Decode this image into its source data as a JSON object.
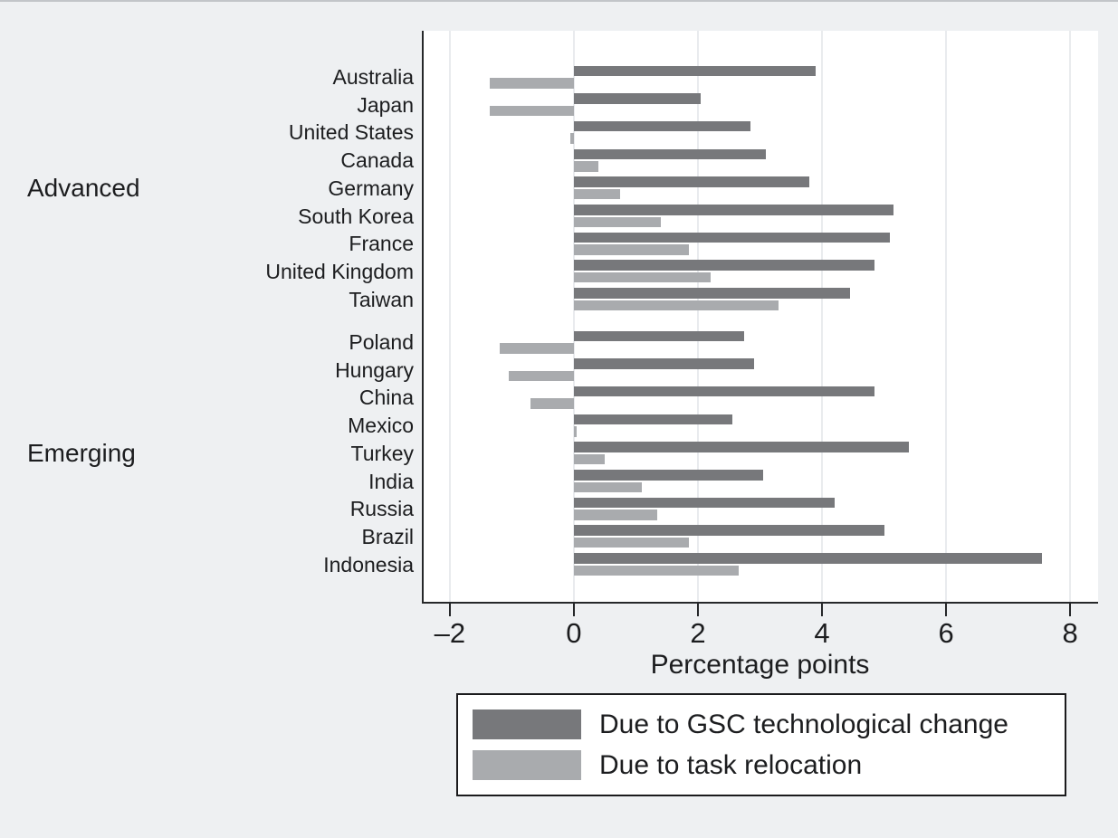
{
  "colors": {
    "background": "#eef0f2",
    "plot_background": "#ffffff",
    "gridline": "#e9ebee",
    "axis": "#26282a",
    "text": "#1c1d1f",
    "bar_dark": "#77787b",
    "bar_light": "#a9abae",
    "legend_border": "#1b1b1d",
    "top_rule": "#c2c5c9"
  },
  "chart_data": {
    "type": "bar",
    "orientation": "horizontal",
    "title": "",
    "xlabel": "Percentage points",
    "x_ticks": [
      -2,
      0,
      2,
      4,
      6,
      8
    ],
    "x_tick_labels": [
      "–2",
      "0",
      "2",
      "4",
      "6",
      "8"
    ],
    "xlim": [
      -2.45,
      8.45
    ],
    "grid": "vertical-light-on-white",
    "legend_position": "bottom",
    "series": [
      {
        "key": "gsc",
        "name": "Due to GSC technological change",
        "color": "#77787b"
      },
      {
        "key": "task",
        "name": "Due to task relocation",
        "color": "#a9abae"
      }
    ],
    "groups": [
      {
        "label": "Advanced",
        "rows": [
          {
            "country": "Australia",
            "gsc": 3.9,
            "task": -1.35
          },
          {
            "country": "Japan",
            "gsc": 2.05,
            "task": -1.35
          },
          {
            "country": "United States",
            "gsc": 2.85,
            "task": -0.05
          },
          {
            "country": "Canada",
            "gsc": 3.1,
            "task": 0.4
          },
          {
            "country": "Germany",
            "gsc": 3.8,
            "task": 0.75
          },
          {
            "country": "South Korea",
            "gsc": 5.15,
            "task": 1.4
          },
          {
            "country": "France",
            "gsc": 5.1,
            "task": 1.85
          },
          {
            "country": "United Kingdom",
            "gsc": 4.85,
            "task": 2.2
          },
          {
            "country": "Taiwan",
            "gsc": 4.45,
            "task": 3.3
          }
        ]
      },
      {
        "label": "Emerging",
        "rows": [
          {
            "country": "Poland",
            "gsc": 2.75,
            "task": -1.2
          },
          {
            "country": "Hungary",
            "gsc": 2.9,
            "task": -1.05
          },
          {
            "country": "China",
            "gsc": 4.85,
            "task": -0.7
          },
          {
            "country": "Mexico",
            "gsc": 2.55,
            "task": 0.05
          },
          {
            "country": "Turkey",
            "gsc": 5.4,
            "task": 0.5
          },
          {
            "country": "India",
            "gsc": 3.05,
            "task": 1.1
          },
          {
            "country": "Russia",
            "gsc": 4.2,
            "task": 1.35
          },
          {
            "country": "Brazil",
            "gsc": 5.0,
            "task": 1.85
          },
          {
            "country": "Indonesia",
            "gsc": 7.55,
            "task": 2.65
          }
        ]
      }
    ]
  },
  "legend": {
    "item1": "Due to GSC technological change",
    "item2": "Due to task relocation"
  }
}
